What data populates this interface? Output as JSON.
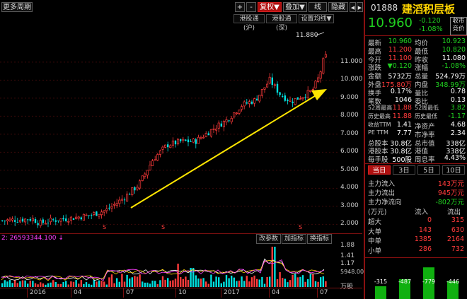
{
  "toolbar": {
    "period_menu": "更多周期",
    "btn_plus": "+",
    "btn_minus": "-",
    "fuquan": "复权▼",
    "diejia": "叠加▼",
    "xian": "线",
    "yincang": "隐藏",
    "nav_left": "◀",
    "nav_right": "▶"
  },
  "sub_buttons": {
    "hk_sh": "港股通(沪)",
    "hk_sz": "港股通(深)",
    "ma_setting": "设置均线▼"
  },
  "chart": {
    "max_label": "11.880",
    "y_ticks": [
      "11.000",
      "10.000",
      "9.000",
      "8.000",
      "7.000",
      "6.000",
      "5.000",
      "4.000",
      "3.000",
      "2.000"
    ],
    "vol_ticks": [
      "1.88",
      "1.41",
      "1.17",
      "5948.00",
      "万股"
    ],
    "volume_info": "2: 26593344.100 ↓",
    "indicator_buttons": [
      "改参数",
      "加指标",
      "换指标"
    ],
    "x_labels": [
      "2016",
      "04",
      "07",
      "10",
      "2017",
      "04",
      "07"
    ],
    "s_marker": "S",
    "colors": {
      "up": "#ff3b3b",
      "down": "#00e0e0",
      "arrow": "#ffe600"
    }
  },
  "quote": {
    "code": "01888",
    "name": "建滔积层板",
    "price": "10.960",
    "change": "-0.120",
    "change_pct": "-1.08%",
    "close_status": "收市\n竞价",
    "rows": [
      [
        "最新",
        "10.960",
        "均价",
        "10.923"
      ],
      [
        "最高",
        "11.200",
        "最低",
        "10.820"
      ],
      [
        "今开",
        "11.100",
        "昨收",
        "11.080"
      ],
      [
        "涨跌",
        "▼0.120",
        "涨幅",
        "-1.08%"
      ],
      [
        "金额",
        "5732万",
        "总量",
        "524.79万"
      ],
      [
        "外盘",
        "175.80万",
        "内盘",
        "348.99万"
      ],
      [
        "换手",
        "0.17%",
        "量比",
        "0.78"
      ],
      [
        "笔数",
        "1046",
        "委比",
        "0.13"
      ],
      [
        "52周最高",
        "11.88",
        "52周最低",
        "3.82"
      ],
      [
        "历史最高",
        "11.88",
        "历史最低",
        "-1.17"
      ],
      [
        "收益TTM",
        "1.41",
        "净资产",
        "4.68"
      ],
      [
        "PE TTM",
        "7.77",
        "市净率",
        "2.34"
      ],
      [
        "总股本",
        "30.8亿",
        "总市值",
        "338亿"
      ],
      [
        "港股本",
        "30.8亿",
        "港值",
        "338亿"
      ],
      [
        "每手股",
        "500股",
        "周息率",
        "4.43%"
      ]
    ]
  },
  "tabs": [
    "当日",
    "3日",
    "5日",
    "10日"
  ],
  "flow": {
    "inflow_label": "主力流入",
    "inflow": "143万元",
    "outflow_label": "主力流出",
    "outflow": "945万元",
    "net_label": "主力净流向",
    "net": "-802万元",
    "unit": "(万元)",
    "col_in": "流入",
    "col_out": "流出",
    "rows": [
      [
        "超大",
        "0",
        "315"
      ],
      [
        "大单",
        "143",
        "630"
      ],
      [
        "中单",
        "1385",
        "2164"
      ],
      [
        "小单",
        "286",
        "732"
      ]
    ],
    "bars": [
      "-315",
      "-487",
      "-779",
      "-446"
    ]
  }
}
